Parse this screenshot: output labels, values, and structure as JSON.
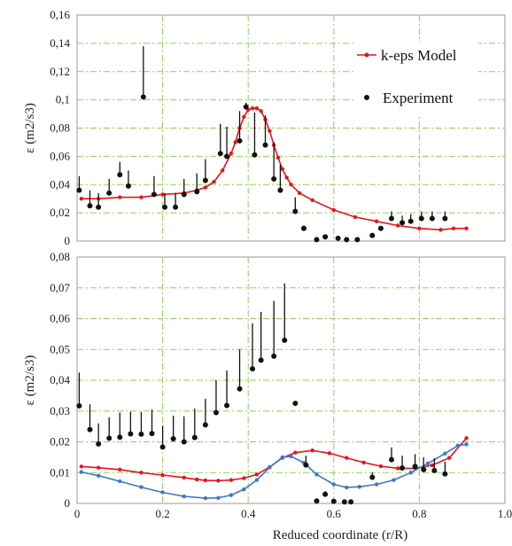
{
  "chart_data": [
    {
      "type": "scatter",
      "title": "",
      "xlabel": "",
      "ylabel": "ε (m2/s3)",
      "xlim": [
        0,
        1.0
      ],
      "ylim": [
        0,
        0.16
      ],
      "x_ticks": [
        "0",
        "0.2",
        "0.4",
        "0.6",
        "0.8",
        "1.0"
      ],
      "y_ticks": [
        "0",
        "0,02",
        "0,04",
        "0,06",
        "0,08",
        "0,1",
        "0,12",
        "0,14",
        "0,16"
      ],
      "grid": true,
      "legend_position": "top-right",
      "series": [
        {
          "name": "k-eps Model",
          "color": "#e8141c",
          "style": "line-with-markers",
          "points": [
            [
              0.01,
              0.03
            ],
            [
              0.05,
              0.03
            ],
            [
              0.1,
              0.031
            ],
            [
              0.15,
              0.031
            ],
            [
              0.2,
              0.033
            ],
            [
              0.25,
              0.034
            ],
            [
              0.28,
              0.036
            ],
            [
              0.3,
              0.038
            ],
            [
              0.32,
              0.042
            ],
            [
              0.34,
              0.05
            ],
            [
              0.36,
              0.062
            ],
            [
              0.37,
              0.07
            ],
            [
              0.38,
              0.08
            ],
            [
              0.39,
              0.088
            ],
            [
              0.4,
              0.093
            ],
            [
              0.41,
              0.094
            ],
            [
              0.42,
              0.094
            ],
            [
              0.43,
              0.092
            ],
            [
              0.44,
              0.086
            ],
            [
              0.45,
              0.078
            ],
            [
              0.46,
              0.068
            ],
            [
              0.47,
              0.059
            ],
            [
              0.48,
              0.051
            ],
            [
              0.49,
              0.045
            ],
            [
              0.5,
              0.04
            ],
            [
              0.52,
              0.034
            ],
            [
              0.55,
              0.029
            ],
            [
              0.6,
              0.022
            ],
            [
              0.65,
              0.017
            ],
            [
              0.7,
              0.014
            ],
            [
              0.75,
              0.011
            ],
            [
              0.8,
              0.009
            ],
            [
              0.85,
              0.008
            ],
            [
              0.88,
              0.009
            ],
            [
              0.91,
              0.009
            ]
          ]
        },
        {
          "name": "Experiment",
          "color": "#111111",
          "style": "markers-with-error-bars",
          "points": [
            [
              0.005,
              0.036,
              0.046
            ],
            [
              0.03,
              0.025,
              0.036
            ],
            [
              0.05,
              0.024,
              0.034
            ],
            [
              0.075,
              0.034,
              0.044
            ],
            [
              0.1,
              0.047,
              0.056
            ],
            [
              0.12,
              0.039,
              0.05
            ],
            [
              0.155,
              0.102,
              0.138
            ],
            [
              0.18,
              0.033,
              0.046
            ],
            [
              0.205,
              0.024,
              0.034
            ],
            [
              0.23,
              0.024,
              0.034
            ],
            [
              0.25,
              0.033,
              0.044
            ],
            [
              0.28,
              0.035,
              0.048
            ],
            [
              0.3,
              0.043,
              0.058
            ],
            [
              0.335,
              0.062,
              0.083
            ],
            [
              0.35,
              0.06,
              0.081
            ],
            [
              0.38,
              0.071,
              0.092
            ],
            [
              0.395,
              0.095,
              0.098
            ],
            [
              0.415,
              0.061,
              0.091
            ],
            [
              0.44,
              0.068,
              0.089
            ],
            [
              0.46,
              0.044,
              0.07
            ],
            [
              0.475,
              0.036,
              0.054
            ],
            [
              0.51,
              0.021,
              0.031
            ],
            [
              0.53,
              0.009,
              0.011
            ],
            [
              0.56,
              0.001,
              0.002
            ],
            [
              0.58,
              0.003,
              0.004
            ],
            [
              0.61,
              0.002,
              0.003
            ],
            [
              0.63,
              0.001,
              0.002
            ],
            [
              0.655,
              0.001,
              0.002
            ],
            [
              0.69,
              0.004,
              0.005
            ],
            [
              0.71,
              0.009,
              0.01
            ],
            [
              0.735,
              0.016,
              0.021
            ],
            [
              0.76,
              0.013,
              0.018
            ],
            [
              0.78,
              0.014,
              0.019
            ],
            [
              0.805,
              0.016,
              0.021
            ],
            [
              0.83,
              0.016,
              0.021
            ],
            [
              0.86,
              0.016,
              0.021
            ]
          ]
        }
      ]
    },
    {
      "type": "scatter",
      "title": "",
      "xlabel": "Reduced coordinate (r/R)",
      "ylabel": "ε (m2/s3)",
      "xlim": [
        0,
        1.0
      ],
      "ylim": [
        0,
        0.08
      ],
      "x_ticks": [
        "0",
        "0.2",
        "0.4",
        "0.6",
        "0.8",
        "1.0"
      ],
      "y_ticks": [
        "0",
        "0,01",
        "0,02",
        "0,03",
        "0,04",
        "0,05",
        "0,06",
        "0,07",
        "0,08"
      ],
      "grid": true,
      "series": [
        {
          "name": "",
          "color": "#e8141c",
          "style": "line-with-markers",
          "points": [
            [
              0.01,
              0.012
            ],
            [
              0.05,
              0.0116
            ],
            [
              0.1,
              0.011
            ],
            [
              0.15,
              0.01
            ],
            [
              0.2,
              0.0092
            ],
            [
              0.25,
              0.0084
            ],
            [
              0.28,
              0.0078
            ],
            [
              0.3,
              0.0075
            ],
            [
              0.33,
              0.0074
            ],
            [
              0.36,
              0.0076
            ],
            [
              0.39,
              0.0082
            ],
            [
              0.42,
              0.0094
            ],
            [
              0.45,
              0.0118
            ],
            [
              0.48,
              0.0148
            ],
            [
              0.51,
              0.0165
            ],
            [
              0.55,
              0.0172
            ],
            [
              0.59,
              0.0163
            ],
            [
              0.63,
              0.0148
            ],
            [
              0.67,
              0.0133
            ],
            [
              0.71,
              0.0121
            ],
            [
              0.75,
              0.0114
            ],
            [
              0.79,
              0.0114
            ],
            [
              0.83,
              0.0124
            ],
            [
              0.87,
              0.0148
            ],
            [
              0.91,
              0.0212
            ]
          ]
        },
        {
          "name": "",
          "color": "#3b78c8",
          "style": "line-with-markers",
          "points": [
            [
              0.01,
              0.0102
            ],
            [
              0.05,
              0.009
            ],
            [
              0.1,
              0.0072
            ],
            [
              0.15,
              0.0053
            ],
            [
              0.2,
              0.0036
            ],
            [
              0.25,
              0.0023
            ],
            [
              0.3,
              0.0017
            ],
            [
              0.33,
              0.0018
            ],
            [
              0.36,
              0.0027
            ],
            [
              0.39,
              0.0046
            ],
            [
              0.42,
              0.0076
            ],
            [
              0.45,
              0.0117
            ],
            [
              0.48,
              0.015
            ],
            [
              0.5,
              0.0153
            ],
            [
              0.53,
              0.0132
            ],
            [
              0.56,
              0.0094
            ],
            [
              0.6,
              0.0062
            ],
            [
              0.63,
              0.0052
            ],
            [
              0.66,
              0.0054
            ],
            [
              0.7,
              0.0062
            ],
            [
              0.74,
              0.0076
            ],
            [
              0.78,
              0.01
            ],
            [
              0.82,
              0.013
            ],
            [
              0.86,
              0.0162
            ],
            [
              0.89,
              0.0188
            ],
            [
              0.91,
              0.0192
            ]
          ]
        },
        {
          "name": "",
          "color": "#111111",
          "style": "markers-with-error-bars",
          "points": [
            [
              0.005,
              0.0317,
              0.0425
            ],
            [
              0.03,
              0.024,
              0.0322
            ],
            [
              0.05,
              0.0193,
              0.026
            ],
            [
              0.075,
              0.0212,
              0.028
            ],
            [
              0.1,
              0.0215,
              0.0295
            ],
            [
              0.125,
              0.0226,
              0.0298
            ],
            [
              0.15,
              0.0225,
              0.0297
            ],
            [
              0.175,
              0.0227,
              0.0305
            ],
            [
              0.2,
              0.0183,
              0.0252
            ],
            [
              0.225,
              0.021,
              0.0285
            ],
            [
              0.25,
              0.02,
              0.0283
            ],
            [
              0.275,
              0.0214,
              0.0308
            ],
            [
              0.3,
              0.0255,
              0.034
            ],
            [
              0.325,
              0.0295,
              0.04
            ],
            [
              0.35,
              0.0318,
              0.0432
            ],
            [
              0.38,
              0.0372,
              0.05
            ],
            [
              0.41,
              0.0437,
              0.0585
            ],
            [
              0.43,
              0.0465,
              0.0622
            ],
            [
              0.46,
              0.0478,
              0.0658
            ],
            [
              0.485,
              0.053,
              0.0715
            ],
            [
              0.51,
              0.0325,
              0.033
            ],
            [
              0.535,
              0.0125,
              0.0155
            ],
            [
              0.56,
              0.0008,
              0.001
            ],
            [
              0.58,
              0.003,
              0.004
            ],
            [
              0.6,
              0.0007,
              0.0009
            ],
            [
              0.625,
              0.0005,
              0.0007
            ],
            [
              0.64,
              0.0005,
              0.0007
            ],
            [
              0.69,
              0.0085,
              0.01
            ],
            [
              0.735,
              0.0142,
              0.0182
            ],
            [
              0.76,
              0.0115,
              0.0155
            ],
            [
              0.79,
              0.012,
              0.016
            ],
            [
              0.81,
              0.011,
              0.015
            ],
            [
              0.835,
              0.0107,
              0.0147
            ],
            [
              0.86,
              0.0096,
              0.0135
            ]
          ]
        }
      ]
    }
  ]
}
